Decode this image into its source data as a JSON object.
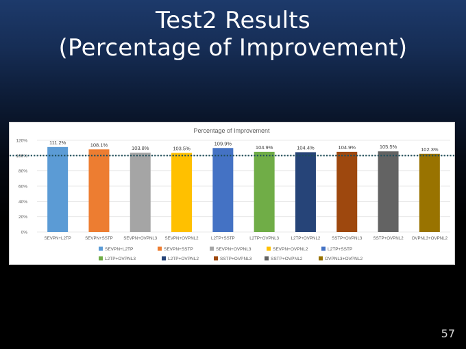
{
  "slide": {
    "title_line1": "Test2 Results",
    "title_line2": "(Percentage of Improvement)",
    "page_number": "57"
  },
  "chart_data": {
    "type": "bar",
    "title": "Percentage of Improvement",
    "categories": [
      "SEVPN+L2TP",
      "SEVPN+SSTP",
      "SEVPN+OVPNL3",
      "SEVPN+OVPNL2",
      "L2TP+SSTP",
      "L2TP+OVPNL3",
      "L2TP+OVPNL2",
      "SSTP+OVPNL3",
      "SSTP+OVPNL2",
      "OVPNL3+OVPNL2"
    ],
    "values": [
      111.2,
      108.1,
      103.8,
      103.5,
      109.9,
      104.9,
      104.4,
      104.9,
      105.5,
      102.3
    ],
    "value_labels": [
      "111.2%",
      "108.1%",
      "103.8%",
      "103.5%",
      "109.9%",
      "104.9%",
      "104.4%",
      "104.9%",
      "105.5%",
      "102.3%"
    ],
    "colors": [
      "#5b9bd5",
      "#ed7d31",
      "#a5a5a5",
      "#ffc000",
      "#4472c4",
      "#70ad47",
      "#264478",
      "#9e480e",
      "#636363",
      "#997300"
    ],
    "y_ticks": [
      0,
      20,
      40,
      60,
      80,
      100,
      120
    ],
    "y_tick_labels": [
      "0%",
      "20%",
      "40%",
      "60%",
      "80%",
      "100%",
      "120%"
    ],
    "ylim": [
      0,
      120
    ],
    "reference_line": 100,
    "grid": true,
    "legend_position": "bottom",
    "xlabel": "",
    "ylabel": ""
  }
}
